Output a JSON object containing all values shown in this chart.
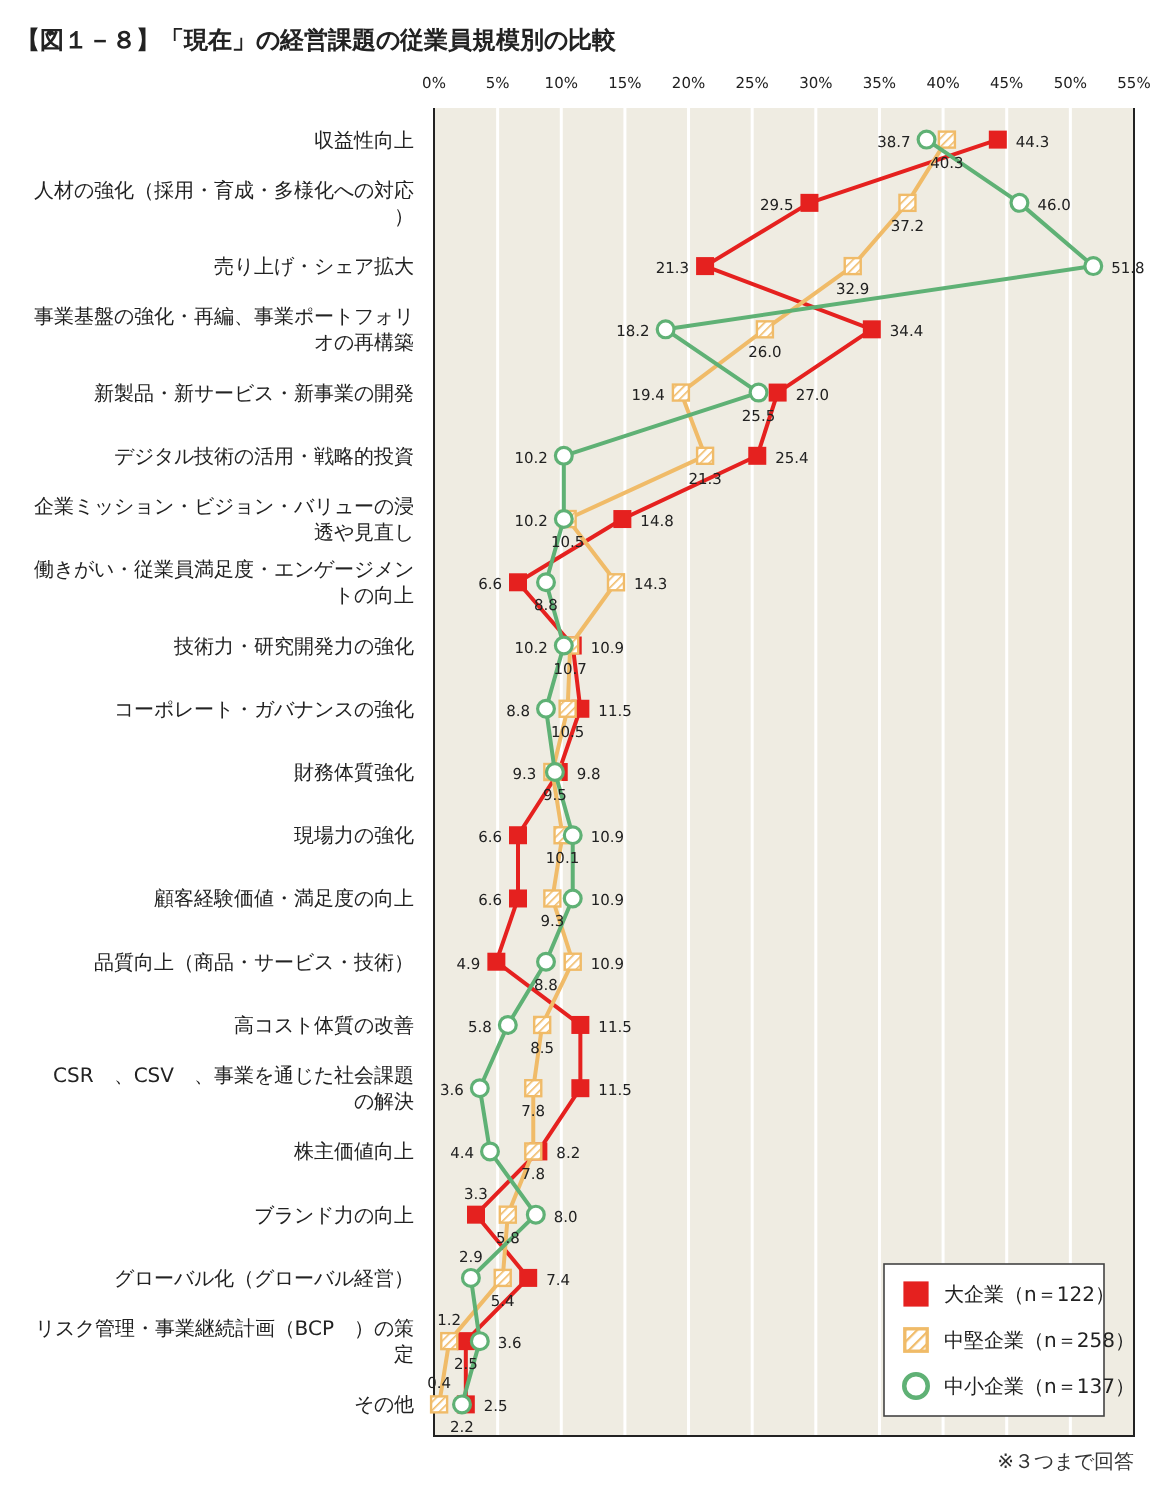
{
  "chart_data": {
    "type": "line",
    "orientation": "horizontal",
    "title": "【図１－８】「現在」の経営課題の従業員規模別の比較",
    "categories": [
      "収益性向上",
      "人材の強化（採用・育成・多様化への対応）",
      "売り上げ・シェア拡大",
      "事業基盤の強化・再編、事業ポートフォリオの再構築",
      "新製品・新サービス・新事業の開発",
      "デジタル技術の活用・戦略的投資",
      "企業ミッション・ビジョン・バリューの浸透や見直し",
      "働きがい・従業員満足度・エンゲージメントの向上",
      "技術力・研究開発力の強化",
      "コーポレート・ガバナンスの強化",
      "財務体質強化",
      "現場力の強化",
      "顧客経験価値・満足度の向上",
      "品質向上（商品・サービス・技術）",
      "高コスト体質の改善",
      "CSR　、CSV　、事業を通じた社会課題の解決",
      "株主価値向上",
      "ブランド力の向上",
      "グローバル化（グローバル経営）",
      "リスク管理・事業継続計画（BCP　）の策定",
      "その他"
    ],
    "series": [
      {
        "name": "大企業（n＝122）",
        "color": "#e5211f",
        "marker": "square",
        "values": [
          44.3,
          29.5,
          21.3,
          34.4,
          27.0,
          25.4,
          14.8,
          6.6,
          10.9,
          11.5,
          9.8,
          6.6,
          6.6,
          4.9,
          11.5,
          11.5,
          8.2,
          3.3,
          7.4,
          2.5,
          2.5
        ],
        "value_labels": [
          "44.3",
          "29.5",
          "21.3",
          "34.4",
          "27.0",
          "25.4",
          "14.8",
          "6.6",
          "10.9",
          "11.5",
          "9.8",
          "6.6",
          "6.6",
          "4.9",
          "11.5",
          "11.5",
          "8.2",
          "3.3",
          "7.4",
          "2.5",
          "2.5"
        ]
      },
      {
        "name": "中堅企業（n＝258）",
        "color": "#f0bb68",
        "marker": "square",
        "values": [
          40.3,
          37.2,
          32.9,
          26.0,
          19.4,
          21.3,
          10.5,
          14.3,
          10.7,
          10.5,
          9.3,
          10.1,
          9.3,
          10.9,
          8.5,
          7.8,
          7.8,
          5.8,
          5.4,
          1.2,
          0.4
        ],
        "value_labels": [
          "40.3",
          "37.2",
          "32.9",
          "26.0",
          "19.4",
          "21.3",
          "10.5",
          "14.3",
          "10.7",
          "10.5",
          "9.3",
          "10.1",
          "9.3",
          "10.9",
          "8.5",
          "7.8",
          "7.8",
          "5.8",
          "5.4",
          "1.2",
          "0.4"
        ]
      },
      {
        "name": "中小企業（n＝137）",
        "color": "#5fb175",
        "marker": "circle",
        "values": [
          38.7,
          46.0,
          51.8,
          18.2,
          25.5,
          10.2,
          10.2,
          8.8,
          10.2,
          8.8,
          9.5,
          10.9,
          10.9,
          8.8,
          5.8,
          3.6,
          4.4,
          8.0,
          2.9,
          3.6,
          2.2
        ],
        "value_labels": [
          "38.7",
          "46.0",
          "51.8",
          "18.2",
          "25.5",
          "10.2",
          "10.2",
          "8.8",
          "10.2",
          "8.8",
          "9.5",
          "10.9",
          "10.9",
          "8.8",
          "5.8",
          "3.6",
          "4.4",
          "8.0",
          "2.9",
          "3.6",
          "2.2"
        ]
      }
    ],
    "xlim": [
      0,
      55
    ],
    "xticks": [
      {
        "value": 0,
        "label": "0%"
      },
      {
        "value": 5,
        "label": "5%"
      },
      {
        "value": 10,
        "label": "10%"
      },
      {
        "value": 15,
        "label": "15%"
      },
      {
        "value": 20,
        "label": "20%"
      },
      {
        "value": 25,
        "label": "25%"
      },
      {
        "value": 30,
        "label": "30%"
      },
      {
        "value": 35,
        "label": "35%"
      },
      {
        "value": 40,
        "label": "40%"
      },
      {
        "value": 45,
        "label": "45%"
      },
      {
        "value": 50,
        "label": "50%"
      },
      {
        "value": 55,
        "label": "55%"
      }
    ],
    "grid": "x",
    "legend": "bottom right",
    "annotations": [
      "※３つまで回答"
    ]
  }
}
